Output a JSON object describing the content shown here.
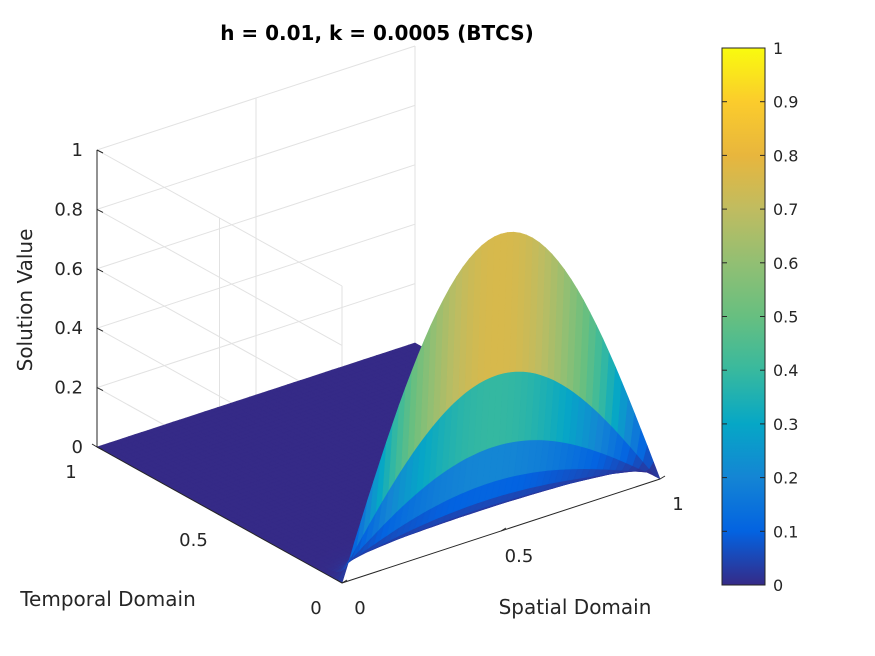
{
  "chart_data": {
    "type": "surface",
    "title": "h = 0.01, k = 0.0005 (BTCS)",
    "xlabel": "Spatial Domain",
    "ylabel": "Temporal Domain",
    "zlabel": "Solution Value",
    "xlim": [
      0,
      1
    ],
    "ylim": [
      0,
      1
    ],
    "zlim": [
      0,
      1
    ],
    "xticks": [
      "0",
      "0.5",
      "1"
    ],
    "yticks": [
      "0",
      "0.5",
      "1"
    ],
    "zticks": [
      "0",
      "0.2",
      "0.4",
      "0.6",
      "0.8",
      "1"
    ],
    "colorbar": {
      "colormap": "parula",
      "range": [
        0,
        1
      ],
      "ticks": [
        "0",
        "0.1",
        "0.2",
        "0.3",
        "0.4",
        "0.5",
        "0.6",
        "0.7",
        "0.8",
        "0.9",
        "1"
      ]
    },
    "surface": {
      "function": "sin(pi*x)*exp(-pi^2*t)",
      "profile_t0": {
        "x": [
          0,
          0.1,
          0.2,
          0.3,
          0.4,
          0.5,
          0.6,
          0.7,
          0.8,
          0.9,
          1
        ],
        "z": [
          0,
          0.309,
          0.588,
          0.809,
          0.951,
          1.0,
          0.951,
          0.809,
          0.588,
          0.309,
          0
        ]
      }
    },
    "grid": true,
    "colors": {
      "low": "#352a87",
      "mid": "#21b1a4",
      "high": "#f9fb0e"
    }
  }
}
